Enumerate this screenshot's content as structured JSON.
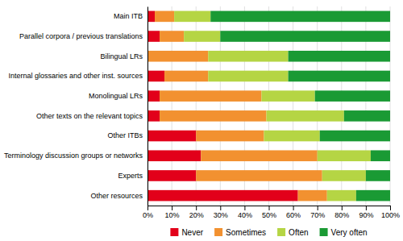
{
  "chart_data": {
    "type": "bar",
    "orientation": "horizontal",
    "stacked": true,
    "categories": [
      "Main ITB",
      "Parallel corpora / previous translations",
      "Bilingual LRs",
      "Internal glossaries and other inst. sources",
      "Monolingual LRs",
      "Other texts on the relevant topics",
      "Other ITBs",
      "Terminology discussion groups or networks",
      "Experts",
      "Other resources"
    ],
    "series": [
      {
        "name": "Never",
        "color": "#e2001a",
        "values": [
          3,
          5,
          0,
          7,
          5,
          5,
          20,
          22,
          20,
          62
        ]
      },
      {
        "name": "Sometimes",
        "color": "#f29130",
        "values": [
          8,
          10,
          25,
          18,
          42,
          44,
          28,
          48,
          52,
          12
        ]
      },
      {
        "name": "Often",
        "color": "#b5d544",
        "values": [
          15,
          15,
          33,
          33,
          22,
          32,
          23,
          22,
          18,
          12
        ]
      },
      {
        "name": "Very often",
        "color": "#1a9a34",
        "values": [
          74,
          70,
          42,
          42,
          31,
          19,
          29,
          8,
          10,
          14
        ]
      }
    ],
    "xlim": [
      0,
      100
    ],
    "xticks": [
      {
        "value": 0,
        "label": "0%"
      },
      {
        "value": 10,
        "label": "10%"
      },
      {
        "value": 20,
        "label": "20%"
      },
      {
        "value": 30,
        "label": "30%"
      },
      {
        "value": 40,
        "label": "40%"
      },
      {
        "value": 50,
        "label": "50%"
      },
      {
        "value": 60,
        "label": "60%"
      },
      {
        "value": 70,
        "label": "70%"
      },
      {
        "value": 80,
        "label": "80%"
      },
      {
        "value": 90,
        "label": "90%"
      },
      {
        "value": 100,
        "label": "100%"
      }
    ],
    "grid": true,
    "legend": "bottom"
  }
}
